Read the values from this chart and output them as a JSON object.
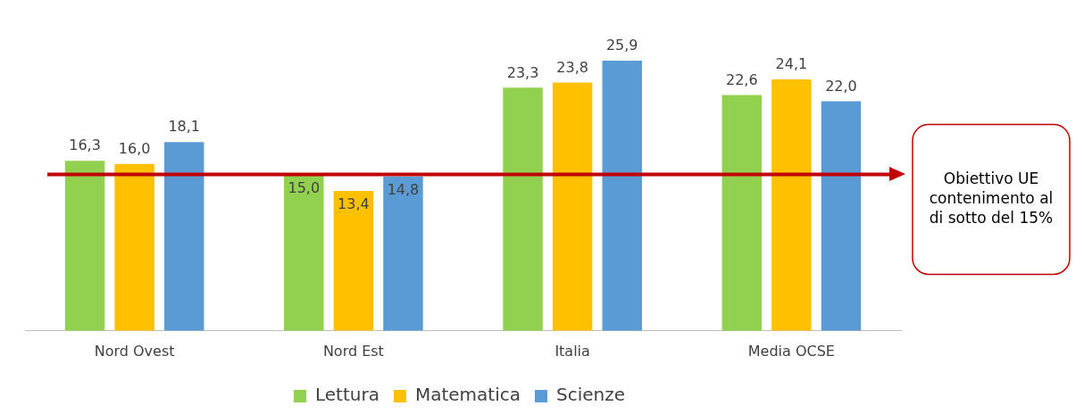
{
  "chart_data": {
    "type": "bar",
    "categories": [
      "Nord Ovest",
      "Nord Est",
      "Italia",
      "Media OCSE"
    ],
    "series": [
      {
        "name": "Lettura",
        "color": "#92d050",
        "values": [
          16.3,
          15.0,
          23.3,
          22.6
        ],
        "value_labels": [
          "16,3",
          "15,0",
          "23,3",
          "22,6"
        ]
      },
      {
        "name": "Matematica",
        "color": "#ffc000",
        "values": [
          16.0,
          13.4,
          23.8,
          24.1
        ],
        "value_labels": [
          "16,0",
          "13,4",
          "23,8",
          "24,1"
        ]
      },
      {
        "name": "Scienze",
        "color": "#5b9bd5",
        "values": [
          18.1,
          14.8,
          25.9,
          22.0
        ],
        "value_labels": [
          "18,1",
          "14,8",
          "25,9",
          "22,0"
        ]
      }
    ],
    "tick_labels": "x",
    "grid": false,
    "legend": "bottom",
    "ref_lines": [
      {
        "axis": "y",
        "value": 15,
        "label": "Obiettivo UE contenimento al di sotto del 15%",
        "color": "#c00000",
        "line_style": "solid"
      }
    ]
  }
}
